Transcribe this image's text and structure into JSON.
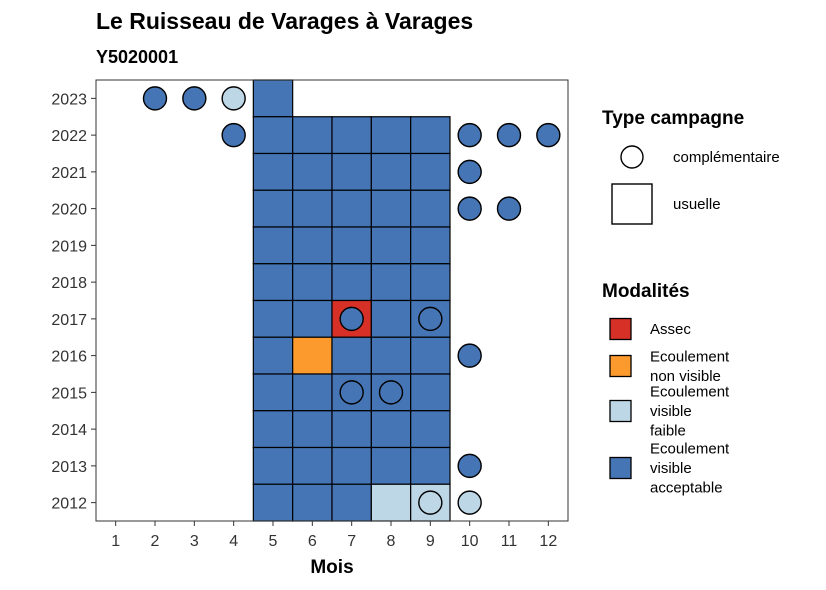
{
  "chart_data": {
    "type": "heatmap",
    "title": "Le Ruisseau de Varages à Varages",
    "subtitle": "Y5020001",
    "xlabel": "Mois",
    "ylabel": "",
    "x_ticks": [
      "1",
      "2",
      "3",
      "4",
      "5",
      "6",
      "7",
      "8",
      "9",
      "10",
      "11",
      "12"
    ],
    "y_ticks": [
      "2012",
      "2013",
      "2014",
      "2015",
      "2016",
      "2017",
      "2018",
      "2019",
      "2020",
      "2021",
      "2022",
      "2023"
    ],
    "xlim": [
      0.5,
      12.5
    ],
    "ylim": [
      2011.5,
      2023.5
    ],
    "grid": false,
    "legend_position": "right",
    "campaign_legend": {
      "title": "Type campagne",
      "items": [
        {
          "key": "complementaire",
          "shape": "circle",
          "label": "complémentaire"
        },
        {
          "key": "usuelle",
          "shape": "square",
          "label": "usuelle"
        }
      ]
    },
    "modality_legend": {
      "title": "Modalités",
      "items": [
        {
          "key": "assec",
          "lines": [
            "Assec"
          ],
          "color": "#d73027"
        },
        {
          "key": "ecoulement_non_visible",
          "lines": [
            "Ecoulement",
            "non visible"
          ],
          "color": "#fd9a2e"
        },
        {
          "key": "ecoulement_visible_faible",
          "lines": [
            "Ecoulement",
            "visible",
            "faible"
          ],
          "color": "#bdd7e7"
        },
        {
          "key": "ecoulement_visible_acceptable",
          "lines": [
            "Ecoulement",
            "visible",
            "acceptable"
          ],
          "color": "#4575b4"
        }
      ]
    },
    "usuelle": [
      {
        "year": 2023,
        "month": 5,
        "modality": "ecoulement_visible_acceptable"
      },
      {
        "year": 2022,
        "month": 5,
        "modality": "ecoulement_visible_acceptable"
      },
      {
        "year": 2022,
        "month": 6,
        "modality": "ecoulement_visible_acceptable"
      },
      {
        "year": 2022,
        "month": 7,
        "modality": "ecoulement_visible_acceptable"
      },
      {
        "year": 2022,
        "month": 8,
        "modality": "ecoulement_visible_acceptable"
      },
      {
        "year": 2022,
        "month": 9,
        "modality": "ecoulement_visible_acceptable"
      },
      {
        "year": 2021,
        "month": 5,
        "modality": "ecoulement_visible_acceptable"
      },
      {
        "year": 2021,
        "month": 6,
        "modality": "ecoulement_visible_acceptable"
      },
      {
        "year": 2021,
        "month": 7,
        "modality": "ecoulement_visible_acceptable"
      },
      {
        "year": 2021,
        "month": 8,
        "modality": "ecoulement_visible_acceptable"
      },
      {
        "year": 2021,
        "month": 9,
        "modality": "ecoulement_visible_acceptable"
      },
      {
        "year": 2020,
        "month": 5,
        "modality": "ecoulement_visible_acceptable"
      },
      {
        "year": 2020,
        "month": 6,
        "modality": "ecoulement_visible_acceptable"
      },
      {
        "year": 2020,
        "month": 7,
        "modality": "ecoulement_visible_acceptable"
      },
      {
        "year": 2020,
        "month": 8,
        "modality": "ecoulement_visible_acceptable"
      },
      {
        "year": 2020,
        "month": 9,
        "modality": "ecoulement_visible_acceptable"
      },
      {
        "year": 2019,
        "month": 5,
        "modality": "ecoulement_visible_acceptable"
      },
      {
        "year": 2019,
        "month": 6,
        "modality": "ecoulement_visible_acceptable"
      },
      {
        "year": 2019,
        "month": 7,
        "modality": "ecoulement_visible_acceptable"
      },
      {
        "year": 2019,
        "month": 8,
        "modality": "ecoulement_visible_acceptable"
      },
      {
        "year": 2019,
        "month": 9,
        "modality": "ecoulement_visible_acceptable"
      },
      {
        "year": 2018,
        "month": 5,
        "modality": "ecoulement_visible_acceptable"
      },
      {
        "year": 2018,
        "month": 6,
        "modality": "ecoulement_visible_acceptable"
      },
      {
        "year": 2018,
        "month": 7,
        "modality": "ecoulement_visible_acceptable"
      },
      {
        "year": 2018,
        "month": 8,
        "modality": "ecoulement_visible_acceptable"
      },
      {
        "year": 2018,
        "month": 9,
        "modality": "ecoulement_visible_acceptable"
      },
      {
        "year": 2017,
        "month": 5,
        "modality": "ecoulement_visible_acceptable"
      },
      {
        "year": 2017,
        "month": 6,
        "modality": "ecoulement_visible_acceptable"
      },
      {
        "year": 2017,
        "month": 7,
        "modality": "assec"
      },
      {
        "year": 2017,
        "month": 8,
        "modality": "ecoulement_visible_acceptable"
      },
      {
        "year": 2017,
        "month": 9,
        "modality": "ecoulement_visible_acceptable"
      },
      {
        "year": 2016,
        "month": 5,
        "modality": "ecoulement_visible_acceptable"
      },
      {
        "year": 2016,
        "month": 6,
        "modality": "ecoulement_non_visible"
      },
      {
        "year": 2016,
        "month": 7,
        "modality": "ecoulement_visible_acceptable"
      },
      {
        "year": 2016,
        "month": 8,
        "modality": "ecoulement_visible_acceptable"
      },
      {
        "year": 2016,
        "month": 9,
        "modality": "ecoulement_visible_acceptable"
      },
      {
        "year": 2015,
        "month": 5,
        "modality": "ecoulement_visible_acceptable"
      },
      {
        "year": 2015,
        "month": 6,
        "modality": "ecoulement_visible_acceptable"
      },
      {
        "year": 2015,
        "month": 7,
        "modality": "ecoulement_visible_acceptable"
      },
      {
        "year": 2015,
        "month": 8,
        "modality": "ecoulement_visible_acceptable"
      },
      {
        "year": 2015,
        "month": 9,
        "modality": "ecoulement_visible_acceptable"
      },
      {
        "year": 2014,
        "month": 5,
        "modality": "ecoulement_visible_acceptable"
      },
      {
        "year": 2014,
        "month": 6,
        "modality": "ecoulement_visible_acceptable"
      },
      {
        "year": 2014,
        "month": 7,
        "modality": "ecoulement_visible_acceptable"
      },
      {
        "year": 2014,
        "month": 8,
        "modality": "ecoulement_visible_acceptable"
      },
      {
        "year": 2014,
        "month": 9,
        "modality": "ecoulement_visible_acceptable"
      },
      {
        "year": 2013,
        "month": 5,
        "modality": "ecoulement_visible_acceptable"
      },
      {
        "year": 2013,
        "month": 6,
        "modality": "ecoulement_visible_acceptable"
      },
      {
        "year": 2013,
        "month": 7,
        "modality": "ecoulement_visible_acceptable"
      },
      {
        "year": 2013,
        "month": 8,
        "modality": "ecoulement_visible_acceptable"
      },
      {
        "year": 2013,
        "month": 9,
        "modality": "ecoulement_visible_acceptable"
      },
      {
        "year": 2012,
        "month": 5,
        "modality": "ecoulement_visible_acceptable"
      },
      {
        "year": 2012,
        "month": 6,
        "modality": "ecoulement_visible_acceptable"
      },
      {
        "year": 2012,
        "month": 7,
        "modality": "ecoulement_visible_acceptable"
      },
      {
        "year": 2012,
        "month": 8,
        "modality": "ecoulement_visible_faible"
      },
      {
        "year": 2012,
        "month": 9,
        "modality": "ecoulement_visible_faible"
      }
    ],
    "complementaire": [
      {
        "year": 2023,
        "month": 2,
        "modality": "ecoulement_visible_acceptable"
      },
      {
        "year": 2023,
        "month": 3,
        "modality": "ecoulement_visible_acceptable"
      },
      {
        "year": 2023,
        "month": 4,
        "modality": "ecoulement_visible_faible"
      },
      {
        "year": 2022,
        "month": 4,
        "modality": "ecoulement_visible_acceptable"
      },
      {
        "year": 2022,
        "month": 10,
        "modality": "ecoulement_visible_acceptable"
      },
      {
        "year": 2022,
        "month": 11,
        "modality": "ecoulement_visible_acceptable"
      },
      {
        "year": 2022,
        "month": 12,
        "modality": "ecoulement_visible_acceptable"
      },
      {
        "year": 2021,
        "month": 10,
        "modality": "ecoulement_visible_acceptable"
      },
      {
        "year": 2020,
        "month": 10,
        "modality": "ecoulement_visible_acceptable"
      },
      {
        "year": 2020,
        "month": 11,
        "modality": "ecoulement_visible_acceptable"
      },
      {
        "year": 2017,
        "month": 7,
        "modality": "ecoulement_visible_acceptable"
      },
      {
        "year": 2017,
        "month": 9,
        "modality": "ecoulement_visible_acceptable"
      },
      {
        "year": 2016,
        "month": 10,
        "modality": "ecoulement_visible_acceptable"
      },
      {
        "year": 2015,
        "month": 7,
        "modality": "ecoulement_visible_acceptable"
      },
      {
        "year": 2015,
        "month": 8,
        "modality": "ecoulement_visible_acceptable"
      },
      {
        "year": 2013,
        "month": 10,
        "modality": "ecoulement_visible_acceptable"
      },
      {
        "year": 2012,
        "month": 9,
        "modality": "ecoulement_visible_faible"
      },
      {
        "year": 2012,
        "month": 10,
        "modality": "ecoulement_visible_faible"
      }
    ]
  }
}
